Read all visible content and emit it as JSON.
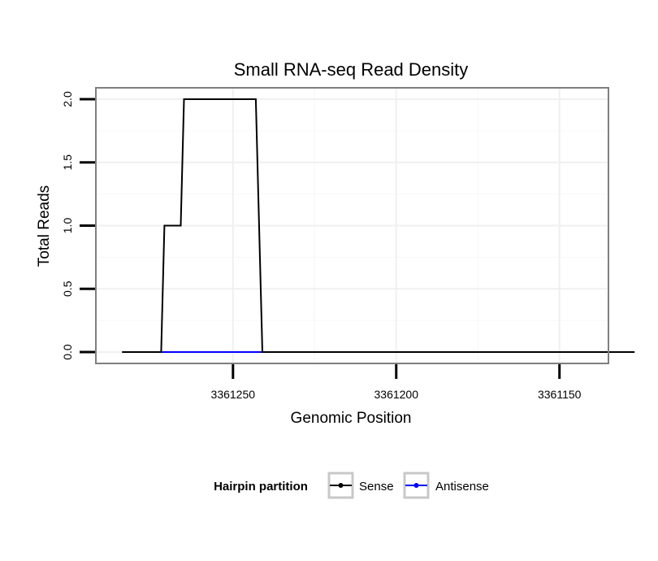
{
  "chart_data": {
    "type": "line",
    "title": "Small RNA-seq Read Density",
    "xlabel": "Genomic Position",
    "ylabel": "Total Reads",
    "x_reversed": true,
    "xlim": [
      3361292,
      3361135
    ],
    "ylim": [
      -0.09,
      2.09
    ],
    "x_ticks": [
      3361250,
      3361200,
      3361150
    ],
    "x_tick_labels": [
      "3361250",
      "3361200",
      "3361150"
    ],
    "y_ticks": [
      0,
      0.5,
      1,
      1.5,
      2
    ],
    "y_tick_labels": [
      "0.0",
      "0.5",
      "1.0",
      "1.5",
      "2.0"
    ],
    "grid": true,
    "legend_position": "bottom",
    "legend_title": "Hairpin partition",
    "series": [
      {
        "name": "Sense",
        "color": "#000000",
        "x": [
          3361284,
          3361272,
          3361271,
          3361266,
          3361265,
          3361243,
          3361241,
          3361127
        ],
        "y": [
          0,
          0,
          1,
          1,
          2,
          2,
          0,
          0
        ]
      },
      {
        "name": "Antisense",
        "color": "#0000ff",
        "x": [
          3361272,
          3361241
        ],
        "y": [
          0,
          0
        ]
      }
    ]
  }
}
